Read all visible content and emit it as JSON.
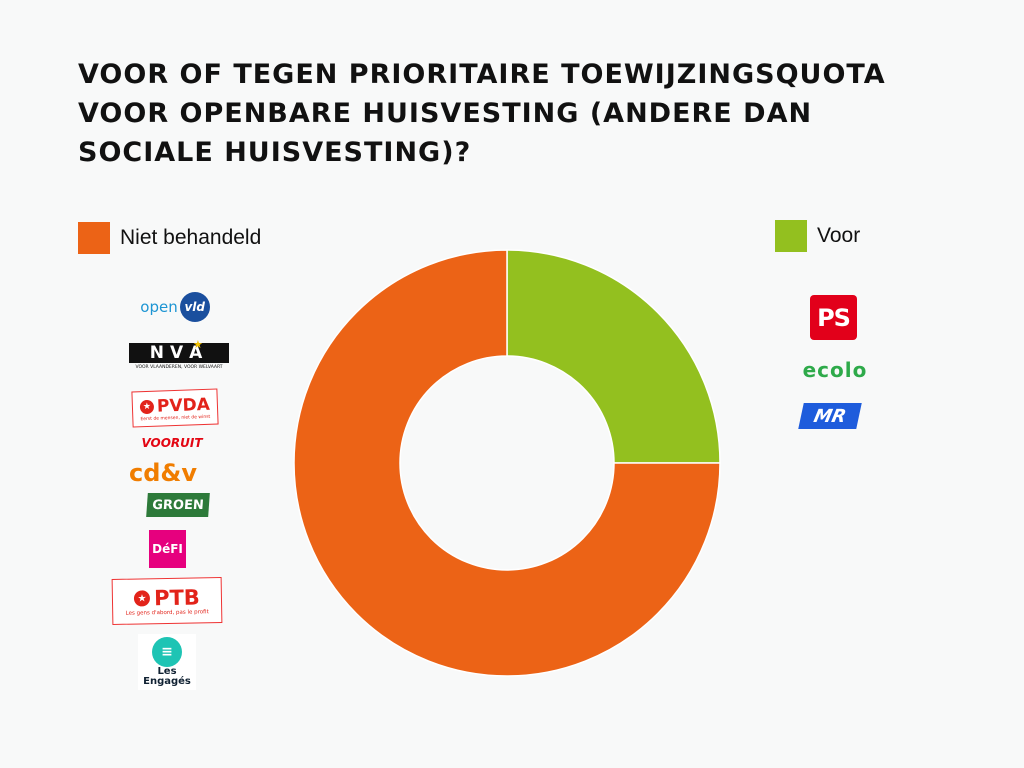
{
  "chart_data": {
    "type": "pie",
    "title": "VOOR OF TEGEN PRIORITAIRE TOEWIJZINGSQUOTA VOOR OPENBARE HUISVESTING (ANDERE DAN SOCIALE HUISVESTING)?",
    "categories": [
      "Voor",
      "Niet behandeld"
    ],
    "values": [
      3,
      9
    ],
    "colors": [
      "#93c01f",
      "#ec6316"
    ],
    "donut": true,
    "legend": [
      {
        "label": "Niet behandeld",
        "color": "#ec6316",
        "placement": "top-left",
        "parties": [
          "open vld",
          "N-VA",
          "PVDA",
          "VOORUIT",
          "cd&v",
          "GROEN",
          "DéFI",
          "PTB",
          "Les Engagés"
        ]
      },
      {
        "label": "Voor",
        "color": "#93c01f",
        "placement": "top-right",
        "parties": [
          "PS",
          "ecolo",
          "MR"
        ]
      }
    ]
  },
  "logos": {
    "openvld": {
      "a": "open",
      "b": "vld"
    },
    "nva": {
      "name": "N-VA",
      "text": "NV",
      "text2": "A",
      "tag": "VOOR VLAANDEREN, VOOR WELVAART"
    },
    "pvda": {
      "name": "PVDA",
      "tag": "Eerst de mensen, niet de winst"
    },
    "vooruit": {
      "name": "VOORUIT"
    },
    "cdv": {
      "name": "cd&v"
    },
    "groen": {
      "name": "GROEN"
    },
    "defi": {
      "name": "DéFI"
    },
    "ptb": {
      "name": "PTB",
      "tag": "Les gens d'abord, pas le profit"
    },
    "engages": {
      "l1": "Les",
      "l2": "Engagés"
    },
    "ps": {
      "name": "PS"
    },
    "ecolo": {
      "name": "ecolo"
    },
    "mr": {
      "name": "MR"
    }
  }
}
